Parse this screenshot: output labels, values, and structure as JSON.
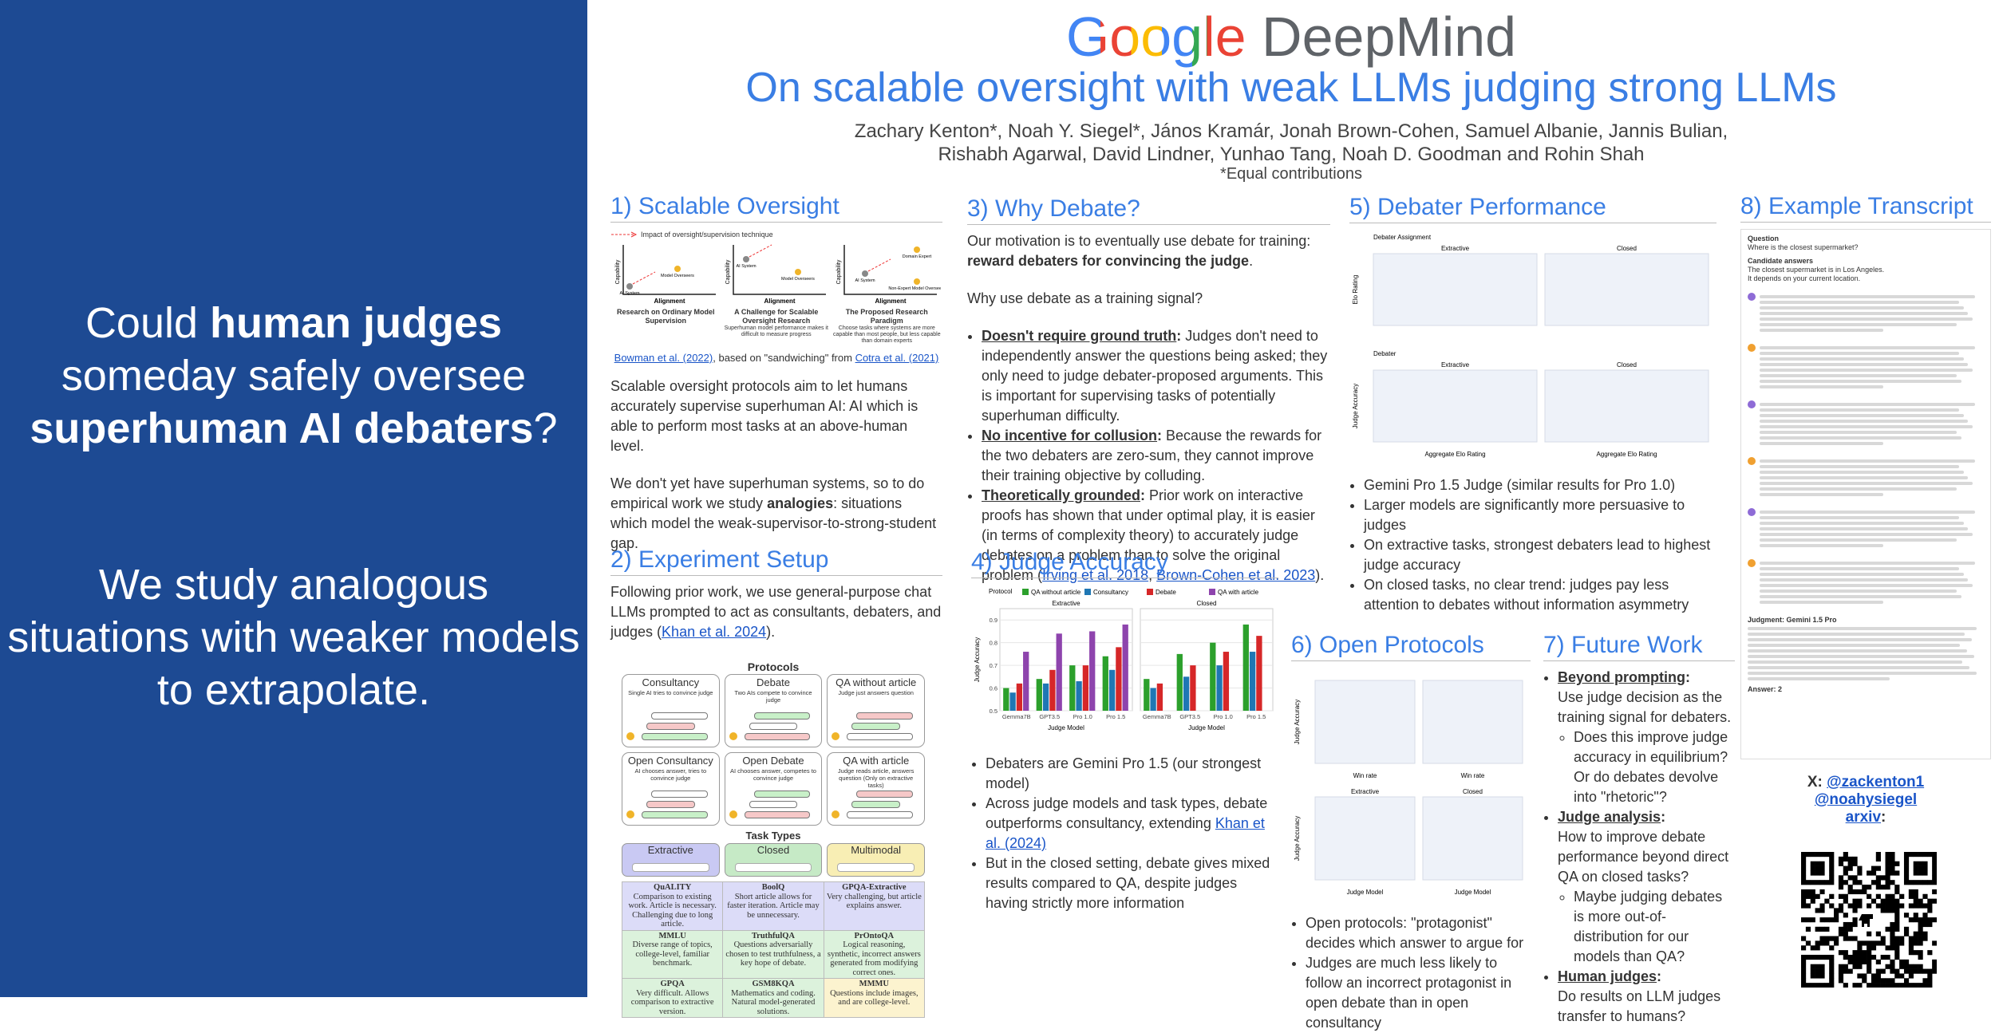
{
  "sidebar": {
    "blocks": [
      [
        [
          {
            "text": "Could "
          },
          {
            "text": "human judges",
            "style": "bold"
          }
        ],
        [
          {
            "text": "someday safely oversee"
          }
        ],
        [
          {
            "text": "superhuman AI debaters",
            "style": "bold"
          },
          {
            "text": "?"
          }
        ]
      ],
      [
        [
          {
            "text": "We study analogous"
          }
        ],
        [
          {
            "text": "situations with weaker models"
          }
        ],
        [
          {
            "text": "to extrapolate."
          }
        ]
      ]
    ]
  },
  "header": {
    "logo_google": "Google",
    "logo_deepmind": "DeepMind",
    "title": "On scalable oversight with weak LLMs judging strong LLMs",
    "authors": [
      "Zachary Kenton*, Noah Y. Siegel*, János Kramár, Jonah Brown-Cohen, Samuel Albanie, Jannis Bulian,",
      "Rishabh Agarwal, David Lindner, Yunhao Tang, Noah D. Goodman and Rohin Shah"
    ],
    "note": "*Equal contributions"
  },
  "sections": [
    {
      "title": "1) Scalable Oversight",
      "blocks": [
        {
          "kind": "figure",
          "figure": "oversight",
          "legend": "Impact of oversight/supervision technique",
          "axis_y": "Capability",
          "axis_x": "Alignment",
          "panels": [
            {
              "nodes": [
                "AI System",
                "Model Overseers"
              ],
              "caption": "Research on Ordinary Model Supervision"
            },
            {
              "nodes": [
                "AI System",
                "Model Overseers"
              ],
              "caption": "A Challenge for Scalable Oversight Research",
              "sub": "Superhuman model performance makes it difficult to measure progress"
            },
            {
              "nodes": [
                "AI System",
                "Domain Expert",
                "Non-Expert Model Overseers"
              ],
              "caption": "The Proposed Research Paradigm",
              "sub": "Choose tasks where systems are more capable than most people, but less capable than domain experts"
            }
          ]
        },
        {
          "kind": "caption",
          "text": [
            {
              "text": "Bowman et al. (2022)",
              "style": "link"
            },
            {
              "text": ", based on \"sandwiching\" from "
            },
            {
              "text": "Cotra et al. (2021)",
              "style": "link"
            }
          ]
        },
        {
          "kind": "p",
          "text": [
            {
              "text": "Scalable oversight protocols aim to let humans accurately supervise superhuman AI: AI which is able to perform most tasks at an above-human level."
            }
          ]
        },
        {
          "kind": "p",
          "text": [
            {
              "text": "We don't yet have superhuman systems, so to do empirical work we study "
            },
            {
              "text": "analogies",
              "style": "bold"
            },
            {
              "text": ": situations which model the weak-supervisor-to-strong-student gap."
            }
          ]
        }
      ]
    },
    {
      "title": "2) Experiment Setup",
      "blocks": [
        {
          "kind": "p",
          "text": [
            {
              "text": "Following prior work, we use general-purpose chat LLMs prompted to act as consultants, debaters, and judges ("
            },
            {
              "text": "Khan et al. 2024",
              "style": "link"
            },
            {
              "text": ")."
            }
          ]
        },
        {
          "kind": "figure",
          "figure": "protocols",
          "title": "Protocols",
          "boxes": [
            {
              "name": "Consultancy",
              "desc": "Single AI tries to convince judge"
            },
            {
              "name": "Debate",
              "desc": "Two AIs compete to convince judge"
            },
            {
              "name": "QA without article",
              "desc": "Judge just answers question"
            },
            {
              "name": "Open Consultancy",
              "desc": "AI chooses answer, tries to convince judge"
            },
            {
              "name": "Open Debate",
              "desc": "AI chooses answer, competes to convince judge"
            },
            {
              "name": "QA with article",
              "desc": "Judge reads article, answers question (Only on extractive tasks)"
            }
          ]
        },
        {
          "kind": "figure",
          "figure": "tasks",
          "title": "Task Types",
          "types": [
            {
              "name": "Extractive",
              "color": "#c9c9f3"
            },
            {
              "name": "Closed",
              "color": "#c6eac6"
            },
            {
              "name": "Multimodal",
              "color": "#f8eeb4"
            }
          ]
        },
        {
          "kind": "figure",
          "figure": "table",
          "rows": [
            [
              {
                "name": "QuALITY",
                "desc": "Comparison to existing work. Article is necessary. Challenging due to long article.",
                "color": "#dcdcf8"
              },
              {
                "name": "BoolQ",
                "desc": "Short article allows for faster iteration. Article may be unnecessary.",
                "color": "#dcdcf8"
              },
              {
                "name": "GPQA-Extractive",
                "desc": "Very challenging, but article explains answer.",
                "color": "#dcdcf8"
              }
            ],
            [
              {
                "name": "MMLU",
                "desc": "Diverse range of topics, college-level, familiar benchmark.",
                "color": "#dcf2dc"
              },
              {
                "name": "TruthfulQA",
                "desc": "Questions adversarially chosen to test truthfulness, a key hope of debate.",
                "color": "#dcf2dc"
              },
              {
                "name": "PrOntoQA",
                "desc": "Logical reasoning, synthetic, incorrect answers generated from modifying correct ones.",
                "color": "#dcf2dc"
              }
            ],
            [
              {
                "name": "GPQA",
                "desc": "Very difficult. Allows comparison to extractive version.",
                "color": "#dcf2dc"
              },
              {
                "name": "GSM8KQA",
                "desc": "Mathematics and coding. Natural model-generated solutions.",
                "color": "#dcf2dc"
              },
              {
                "name": "MMMU",
                "desc": "Questions include images, and are college-level.",
                "color": "#fcf3cf"
              }
            ]
          ]
        }
      ]
    },
    {
      "title": "3) Why Debate?",
      "blocks": [
        {
          "kind": "p",
          "text": [
            {
              "text": "Our motivation is to eventually use debate for training: "
            },
            {
              "text": "reward debaters for convincing the judge",
              "style": "bold"
            },
            {
              "text": "."
            }
          ]
        },
        {
          "kind": "p",
          "text": [
            {
              "text": "Why use debate as a training signal?"
            }
          ]
        },
        {
          "kind": "bullets",
          "items": [
            {
              "text": [
                {
                  "text": "Doesn't require ground truth",
                  "style": "bu"
                },
                {
                  "text": ":",
                  "style": "bold"
                },
                {
                  "text": " Judges don't need to independently answer the questions being asked; they only need to judge debater-proposed arguments. This is important for supervising tasks of potentially superhuman difficulty."
                }
              ]
            },
            {
              "text": [
                {
                  "text": "No incentive for collusion",
                  "style": "bu"
                },
                {
                  "text": ":",
                  "style": "bold"
                },
                {
                  "text": " Because the rewards for the two debaters are zero-sum, they cannot improve their training objective by colluding."
                }
              ]
            },
            {
              "text": [
                {
                  "text": "Theoretically grounded",
                  "style": "bu"
                },
                {
                  "text": ":",
                  "style": "bold"
                },
                {
                  "text": " Prior work on interactive proofs has shown that under optimal play, it is easier (in terms of complexity theory) to accurately judge debates on a problem than to solve the original problem ("
                },
                {
                  "text": "Irving et al. 2018",
                  "style": "link"
                },
                {
                  "text": ", "
                },
                {
                  "text": "Brown-Cohen et al. 2023",
                  "style": "link"
                },
                {
                  "text": ")."
                }
              ]
            }
          ]
        }
      ]
    },
    {
      "title": "4) Judge Accuracy",
      "blocks": [
        {
          "kind": "figure",
          "figure": "chart"
        },
        {
          "kind": "bullets",
          "items": [
            {
              "text": [
                {
                  "text": "Debaters are Gemini Pro 1.5 (our strongest model)"
                }
              ]
            },
            {
              "text": [
                {
                  "text": "Across judge models and task types, debate outperforms consultancy, extending "
                },
                {
                  "text": "Khan et al. (2024)",
                  "style": "link"
                }
              ]
            },
            {
              "text": [
                {
                  "text": "But in the closed setting, debate gives mixed results compared to QA, despite judges having strictly more information"
                }
              ]
            }
          ]
        }
      ]
    },
    {
      "title": "5) Debater Performance",
      "blocks": [
        {
          "kind": "figure",
          "figure": "panels",
          "rows": [
            {
              "legend": "Debater Assignment",
              "ylabel": "Elo Rating",
              "panels": [
                {
                  "title": "Extractive"
                },
                {
                  "title": "Closed"
                }
              ]
            },
            {
              "legend": "Debater",
              "ylabel": "Judge Accuracy",
              "panels": [
                {
                  "title": "Extractive",
                  "xlabel": "Aggregate Elo Rating"
                },
                {
                  "title": "Closed",
                  "xlabel": "Aggregate Elo Rating"
                }
              ]
            }
          ]
        },
        {
          "kind": "bullets",
          "items": [
            {
              "text": [
                {
                  "text": "Gemini Pro 1.5 Judge (similar results for Pro 1.0)"
                }
              ]
            },
            {
              "text": [
                {
                  "text": "Larger models are significantly more persuasive to judges"
                }
              ]
            },
            {
              "text": [
                {
                  "text": "On extractive tasks, strongest debaters lead to highest judge accuracy"
                }
              ]
            },
            {
              "text": [
                {
                  "text": "On closed tasks, no clear trend: judges pay less attention to debates without information asymmetry"
                }
              ]
            }
          ]
        }
      ]
    },
    {
      "title": "6) Open Protocols",
      "blocks": [
        {
          "kind": "figure",
          "figure": "panels",
          "rows": [
            {
              "ylabel": "Judge Accuracy",
              "panels": [
                {
                  "xlabel": "Win rate"
                },
                {
                  "xlabel": "Win rate"
                }
              ]
            },
            {
              "ylabel": "Judge Accuracy",
              "panels": [
                {
                  "title": "Extractive",
                  "xlabel": "Judge Model"
                },
                {
                  "title": "Closed",
                  "xlabel": "Judge Model"
                }
              ]
            }
          ]
        },
        {
          "kind": "bullets",
          "items": [
            {
              "text": [
                {
                  "text": "Open protocols: \"protagonist\" decides which answer to argue for"
                }
              ]
            },
            {
              "text": [
                {
                  "text": "Judges are much less likely to follow an incorrect protagonist in open debate than in open consultancy"
                }
              ]
            }
          ]
        }
      ]
    },
    {
      "title": "7) Future Work",
      "blocks": [
        {
          "kind": "bullets",
          "items": [
            {
              "text": [
                {
                  "text": "Beyond prompting",
                  "style": "bu"
                },
                {
                  "text": ":",
                  "style": "bold"
                },
                {
                  "text": "Use judge decision as the training signal for debaters.",
                  "style": "line"
                }
              ],
              "sub": [
                [
                  {
                    "text": "Does this improve judge accuracy in equilibrium? Or do debates devolve into \"rhetoric\"?"
                  }
                ]
              ]
            },
            {
              "text": [
                {
                  "text": "Judge analysis",
                  "style": "bu"
                },
                {
                  "text": ":",
                  "style": "bold"
                },
                {
                  "text": "How to improve debate performance beyond direct QA on closed tasks?",
                  "style": "line"
                }
              ],
              "sub": [
                [
                  {
                    "text": "Maybe judging debates is more out-of-distribution for our models than QA?"
                  }
                ]
              ]
            },
            {
              "text": [
                {
                  "text": "Human judges",
                  "style": "bu"
                },
                {
                  "text": ":",
                  "style": "bold"
                },
                {
                  "text": "Do results on LLM judges transfer to humans?",
                  "style": "line"
                }
              ]
            }
          ]
        }
      ]
    },
    {
      "title": "8) Example Transcript",
      "blocks": [
        {
          "kind": "figure",
          "figure": "transcript",
          "question_label": "Question",
          "question": "Where is the closest supermarket?",
          "answers_label": "Candidate answers",
          "answers": [
            "The closest supermarket is in Los Angeles.",
            "It depends on your current location."
          ],
          "judgment": "Judgment: Gemini 1.5 Pro",
          "final": "Answer: 2"
        }
      ]
    }
  ],
  "contact": {
    "lines": [
      [
        {
          "text": "X: ",
          "style": "bold"
        },
        {
          "text": "@zackenton1",
          "style": "link"
        }
      ],
      [
        {
          "text": "@noahysiegel",
          "style": "link"
        }
      ],
      [
        {
          "text": "arxiv",
          "style": "link"
        },
        {
          "text": ":",
          "style": "bold"
        }
      ]
    ]
  },
  "chart_data": {
    "type": "bar",
    "legend_title": "Protocol",
    "xlabel": "Judge Model",
    "ylabel": "Judge Accuracy",
    "categories": [
      "Gemma7B",
      "GPT3.5",
      "Pro 1.0",
      "Pro 1.5"
    ],
    "series": [
      {
        "name": "QA without article",
        "color": "#2ca02c"
      },
      {
        "name": "Consultancy",
        "color": "#1f77b4"
      },
      {
        "name": "Debate",
        "color": "#d62728"
      },
      {
        "name": "QA with article",
        "color": "#8e44ad"
      }
    ],
    "panels": [
      {
        "title": "Extractive",
        "values": [
          [
            0.6,
            0.64,
            0.7,
            0.74
          ],
          [
            0.58,
            0.62,
            0.63,
            0.68
          ],
          [
            0.62,
            0.68,
            0.7,
            0.78
          ],
          [
            0.76,
            0.84,
            0.85,
            0.88
          ]
        ]
      },
      {
        "title": "Closed",
        "values": [
          [
            0.64,
            0.75,
            0.8,
            0.88
          ],
          [
            0.6,
            0.65,
            0.7,
            0.76
          ],
          [
            0.62,
            0.7,
            0.76,
            0.83
          ],
          [
            null,
            null,
            null,
            null
          ]
        ]
      }
    ],
    "ylim": [
      0.5,
      0.95
    ],
    "yticks": [
      0.5,
      0.6,
      0.7,
      0.8,
      0.9
    ]
  }
}
